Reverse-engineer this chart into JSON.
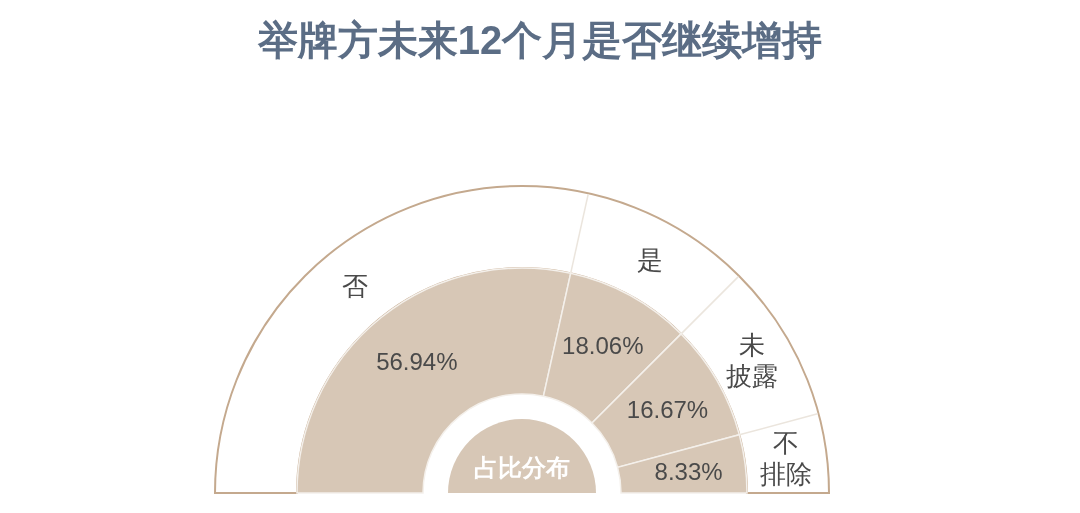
{
  "chart_data": {
    "type": "donut",
    "title": "举牌方未来12个月是否继续增持",
    "categories": [
      "否",
      "是",
      "未披露",
      "不排除"
    ],
    "values": [
      56.94,
      18.06,
      16.67,
      8.33
    ],
    "colors": [
      "#d7c7b6",
      "#d7c7b6",
      "#d7c7b6",
      "#d7c7b6"
    ],
    "value_labels": [
      "56.94%",
      "18.06%",
      "16.67%",
      "8.33%"
    ],
    "annotations": [
      "占比分布"
    ]
  }
}
